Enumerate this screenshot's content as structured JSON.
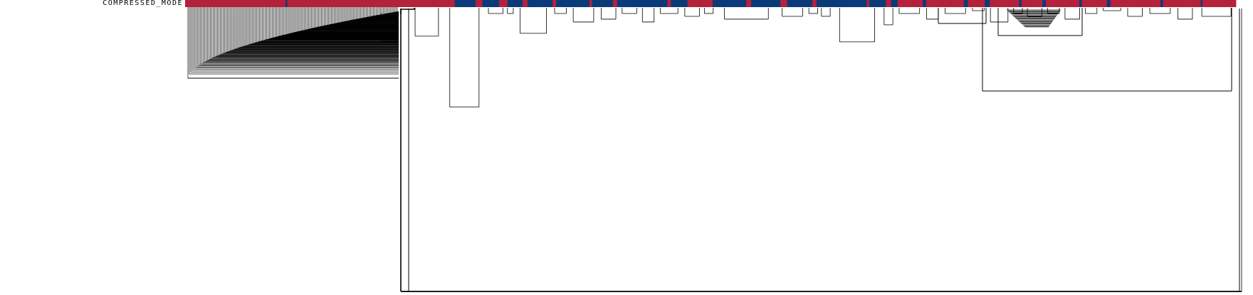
{
  "track": {
    "label": "COMPRESSED_MODE",
    "colors": {
      "a": "#b5203b",
      "b": "#0b3a78"
    },
    "segments": [
      {
        "c": "a",
        "w": 120
      },
      {
        "c": "b",
        "w": 2
      },
      {
        "c": "a",
        "w": 200
      },
      {
        "c": "b",
        "w": 25
      },
      {
        "c": "a",
        "w": 8
      },
      {
        "c": "b",
        "w": 20
      },
      {
        "c": "a",
        "w": 10
      },
      {
        "c": "b",
        "w": 18
      },
      {
        "c": "a",
        "w": 6
      },
      {
        "c": "b",
        "w": 30
      },
      {
        "c": "a",
        "w": 4
      },
      {
        "c": "b",
        "w": 40
      },
      {
        "c": "a",
        "w": 3
      },
      {
        "c": "b",
        "w": 25
      },
      {
        "c": "a",
        "w": 5
      },
      {
        "c": "b",
        "w": 60
      },
      {
        "c": "a",
        "w": 4
      },
      {
        "c": "b",
        "w": 20
      },
      {
        "c": "a",
        "w": 30
      },
      {
        "c": "b",
        "w": 40
      },
      {
        "c": "a",
        "w": 6
      },
      {
        "c": "b",
        "w": 35
      },
      {
        "c": "a",
        "w": 8
      },
      {
        "c": "b",
        "w": 30
      },
      {
        "c": "a",
        "w": 5
      },
      {
        "c": "b",
        "w": 60
      },
      {
        "c": "a",
        "w": 3
      },
      {
        "c": "b",
        "w": 20
      },
      {
        "c": "a",
        "w": 6
      },
      {
        "c": "b",
        "w": 8
      },
      {
        "c": "a",
        "w": 30
      },
      {
        "c": "b",
        "w": 4
      },
      {
        "c": "a",
        "w": 45
      },
      {
        "c": "b",
        "w": 5
      },
      {
        "c": "a",
        "w": 20
      },
      {
        "c": "b",
        "w": 6
      },
      {
        "c": "a",
        "w": 35
      },
      {
        "c": "b",
        "w": 3
      },
      {
        "c": "a",
        "w": 25
      },
      {
        "c": "b",
        "w": 4
      },
      {
        "c": "a",
        "w": 40
      },
      {
        "c": "b",
        "w": 3
      },
      {
        "c": "a",
        "w": 30
      },
      {
        "c": "b",
        "w": 4
      },
      {
        "c": "a",
        "w": 60
      },
      {
        "c": "b",
        "w": 3
      },
      {
        "c": "a",
        "w": 45
      },
      {
        "c": "b",
        "w": 2
      },
      {
        "c": "a",
        "w": 40
      }
    ]
  },
  "dendrogram": {
    "stroke": "#000000",
    "clusters": [
      {
        "weight": 16,
        "height": 0.1
      },
      {
        "weight": 20,
        "height": 0.35
      },
      {
        "weight": 10,
        "height": 0.02
      },
      {
        "weight": 4,
        "height": 0.02
      },
      {
        "weight": 18,
        "height": 0.09
      },
      {
        "weight": 8,
        "height": 0.02
      },
      {
        "weight": 14,
        "height": 0.05
      },
      {
        "weight": 10,
        "height": 0.04
      },
      {
        "weight": 10,
        "height": 0.02
      },
      {
        "weight": 8,
        "height": 0.05
      },
      {
        "weight": 12,
        "height": 0.02
      },
      {
        "weight": 10,
        "height": 0.03
      },
      {
        "weight": 6,
        "height": 0.02
      },
      {
        "weight": 30,
        "height": 0.04
      },
      {
        "weight": 14,
        "height": 0.03
      },
      {
        "weight": 6,
        "height": 0.02
      },
      {
        "weight": 6,
        "height": 0.03
      },
      {
        "weight": 24,
        "height": 0.12
      },
      {
        "weight": 6,
        "height": 0.06
      },
      {
        "weight": 14,
        "height": 0.02
      },
      {
        "weight": 8,
        "height": 0.04
      },
      {
        "weight": 14,
        "height": 0.02
      },
      {
        "weight": 8,
        "height": 0.01
      },
      {
        "weight": 12,
        "height": 0.05
      },
      {
        "weight": 6,
        "height": 0.02
      },
      {
        "weight": 10,
        "height": 0.03
      },
      {
        "weight": 8,
        "height": 0.02
      },
      {
        "weight": 10,
        "height": 0.04
      },
      {
        "weight": 8,
        "height": 0.02
      },
      {
        "weight": 12,
        "height": 0.01
      },
      {
        "weight": 10,
        "height": 0.03
      },
      {
        "weight": 14,
        "height": 0.02
      },
      {
        "weight": 10,
        "height": 0.04
      },
      {
        "weight": 20,
        "height": 0.03
      }
    ]
  }
}
